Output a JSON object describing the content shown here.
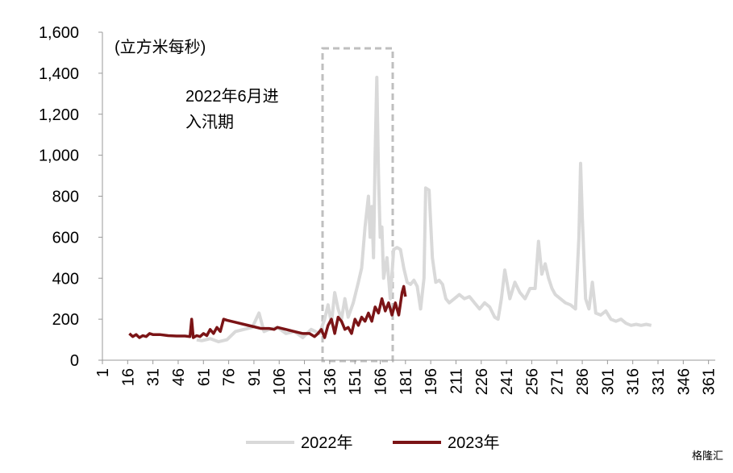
{
  "chart_data": {
    "type": "line",
    "unit_label": "(立方米每秒)",
    "annotation": [
      "2022年6月进",
      "入汛期"
    ],
    "watermark": "格隆汇",
    "xlim": [
      1,
      365
    ],
    "xticks": [
      1,
      16,
      31,
      46,
      61,
      76,
      91,
      106,
      121,
      136,
      151,
      166,
      181,
      196,
      211,
      226,
      241,
      256,
      271,
      286,
      301,
      316,
      331,
      346,
      361
    ],
    "ylim": [
      0,
      1600
    ],
    "yticks": [
      0,
      200,
      400,
      600,
      800,
      {
        "value": 1000,
        "label": "1,000"
      },
      {
        "value": 1200,
        "label": "1,200"
      },
      {
        "value": 1400,
        "label": "1,400"
      },
      {
        "value": 1600,
        "label": "1,600"
      }
    ],
    "legend": "bottom",
    "series": [
      {
        "name": "2022年",
        "color": "#d9d9d9",
        "x": [
          57,
          60,
          65,
          70,
          75,
          80,
          85,
          90,
          94,
          97,
          100,
          105,
          110,
          115,
          120,
          125,
          130,
          133,
          135,
          137,
          139,
          141,
          143,
          145,
          147,
          150,
          153,
          155,
          157,
          159,
          160,
          161,
          162,
          163,
          164,
          165,
          166,
          167,
          168,
          170,
          172,
          174,
          176,
          178,
          180,
          182,
          184,
          186,
          188,
          190,
          192,
          193,
          195,
          197,
          199,
          201,
          203,
          205,
          207,
          210,
          213,
          216,
          219,
          222,
          225,
          228,
          231,
          234,
          236,
          238,
          240,
          243,
          246,
          249,
          252,
          255,
          258,
          260,
          262,
          264,
          266,
          268,
          270,
          273,
          276,
          279,
          282,
          284,
          285,
          286,
          288,
          290,
          292,
          294,
          297,
          300,
          303,
          306,
          309,
          312,
          315,
          318,
          321,
          324,
          327
        ],
        "values": [
          100,
          95,
          105,
          90,
          100,
          140,
          150,
          160,
          230,
          140,
          150,
          160,
          130,
          140,
          110,
          150,
          130,
          200,
          270,
          180,
          330,
          250,
          200,
          300,
          210,
          280,
          380,
          450,
          650,
          800,
          600,
          750,
          500,
          1000,
          1380,
          900,
          600,
          650,
          400,
          500,
          300,
          540,
          550,
          540,
          450,
          380,
          370,
          390,
          360,
          250,
          400,
          840,
          830,
          500,
          380,
          390,
          370,
          300,
          280,
          300,
          320,
          300,
          310,
          280,
          250,
          280,
          260,
          210,
          200,
          300,
          440,
          300,
          380,
          330,
          300,
          350,
          350,
          580,
          420,
          470,
          400,
          350,
          320,
          300,
          280,
          270,
          250,
          600,
          960,
          700,
          300,
          250,
          380,
          230,
          220,
          240,
          200,
          190,
          200,
          180,
          170,
          175,
          170,
          175,
          170
        ]
      },
      {
        "name": "2023年",
        "color": "#7b1416",
        "x": [
          17,
          19,
          21,
          23,
          25,
          27,
          29,
          31,
          35,
          40,
          45,
          50,
          53,
          54,
          55,
          57,
          59,
          61,
          63,
          65,
          67,
          69,
          71,
          73,
          75,
          80,
          85,
          90,
          95,
          100,
          103,
          105,
          110,
          115,
          120,
          124,
          127,
          129,
          131,
          133,
          135,
          137,
          139,
          141,
          143,
          145,
          147,
          149,
          151,
          153,
          155,
          157,
          159,
          161,
          163,
          165,
          167,
          169,
          171,
          173,
          175,
          177,
          179,
          180,
          181
        ],
        "values": [
          130,
          115,
          125,
          110,
          120,
          115,
          130,
          125,
          125,
          120,
          118,
          118,
          115,
          200,
          110,
          120,
          115,
          130,
          120,
          150,
          130,
          160,
          140,
          200,
          195,
          185,
          175,
          165,
          155,
          155,
          150,
          160,
          150,
          140,
          130,
          130,
          115,
          130,
          150,
          110,
          170,
          200,
          130,
          210,
          190,
          150,
          160,
          130,
          200,
          170,
          210,
          190,
          230,
          190,
          260,
          230,
          300,
          240,
          280,
          220,
          280,
          220,
          330,
          360,
          310
        ]
      }
    ]
  }
}
